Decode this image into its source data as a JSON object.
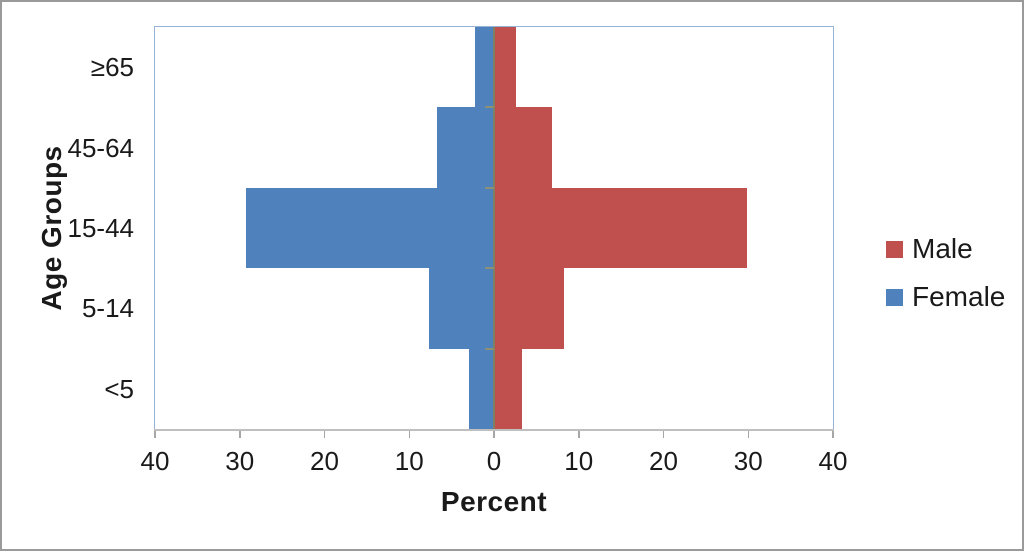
{
  "chart_data": {
    "type": "bar",
    "subtype": "population-pyramid",
    "orientation": "horizontal",
    "xlabel": "Percent",
    "ylabel": "Age Groups",
    "categories": [
      "≥65",
      "45-64",
      "15-44",
      "5-14",
      "<5"
    ],
    "series": [
      {
        "name": "Male",
        "side": "right",
        "color": "#C0504D",
        "values": [
          2.6,
          6.9,
          29.9,
          8.3,
          3.3
        ]
      },
      {
        "name": "Female",
        "side": "left",
        "color": "#4F81BD",
        "values": [
          2.2,
          6.7,
          29.3,
          7.7,
          3.0
        ]
      }
    ],
    "x_tick_labels": [
      "40",
      "30",
      "20",
      "10",
      "0",
      "10",
      "20",
      "30",
      "40"
    ],
    "xlim": [
      -40,
      40
    ],
    "grid": false,
    "legend_position": "right",
    "gap_width": 0
  },
  "colors": {
    "plot_border": "#95B3D7",
    "axis_line": "#BFBFBF",
    "category_axis": "#7F7F64",
    "frame_border": "#9a9a9a",
    "text": "#1a1a1a"
  }
}
